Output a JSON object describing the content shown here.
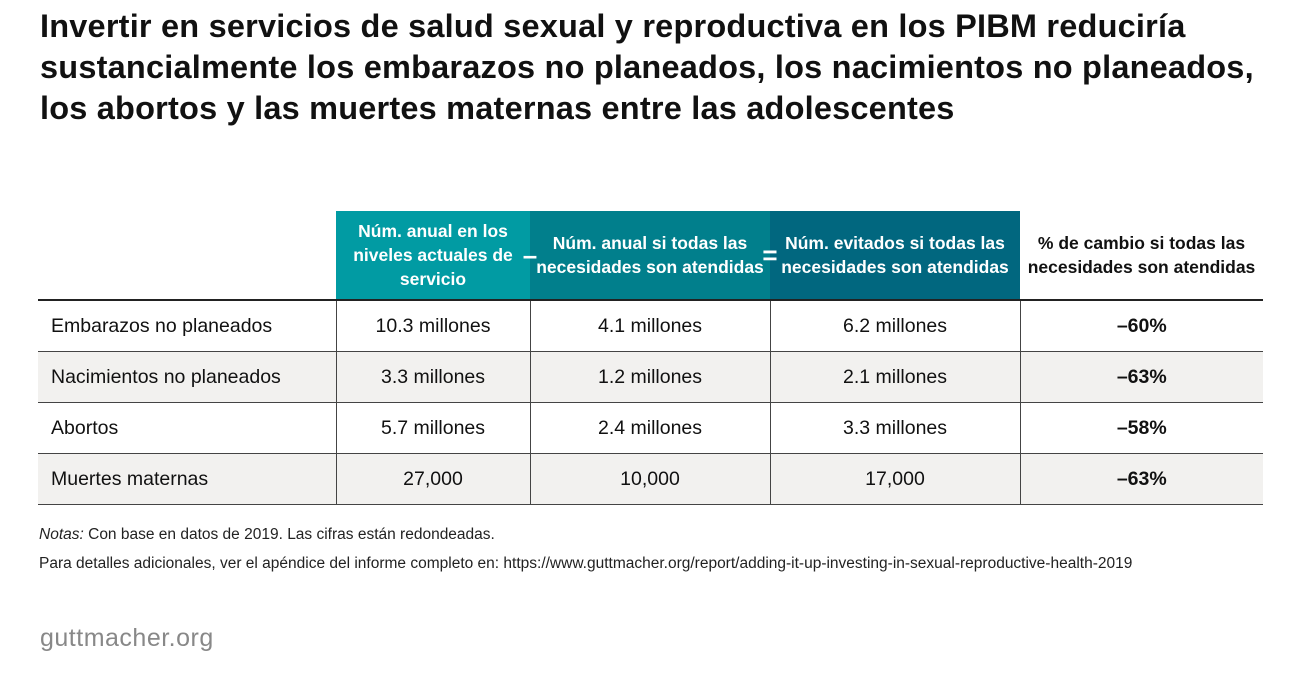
{
  "title": "Invertir en servicios de salud sexual y reproductiva en los PIBM reduciría sustancialmente los embarazos no planeados, los nacimientos no planeados, los abortos y las muertes maternas entre las adolescentes",
  "colors": {
    "col1": "#019ba3",
    "col2": "#017f8c",
    "col3": "#01677f",
    "row_alt": "#f2f1ef"
  },
  "chart_data": {
    "type": "table",
    "columns": [
      "",
      "Núm. anual en los niveles actuales de servicio",
      "Núm. anual si todas las necesidades son atendidas",
      "Núm. evitados si todas las necesidades son atendidas",
      "% de cambio si todas las necesidades son atendidas"
    ],
    "operators": [
      "–",
      "="
    ],
    "rows": [
      [
        "Embarazos no planeados",
        "10.3 millones",
        "4.1 millones",
        "6.2 millones",
        "–60%"
      ],
      [
        "Nacimientos no planeados",
        "3.3 millones",
        "1.2 millones",
        "2.1 millones",
        "–63%"
      ],
      [
        "Abortos",
        "5.7 millones",
        "2.4 millones",
        "3.3 millones",
        "–58%"
      ],
      [
        "Muertes maternas",
        "27,000",
        "10,000",
        "17,000",
        "–63%"
      ]
    ]
  },
  "notes": {
    "label": "Notas:",
    "line1": " Con base en datos de 2019. Las cifras están redondeadas.",
    "line2": "Para detalles adicionales, ver el apéndice del informe completo en: https://www.guttmacher.org/report/adding-it-up-investing-in-sexual-reproductive-health-2019"
  },
  "logo": "guttmacher.org"
}
